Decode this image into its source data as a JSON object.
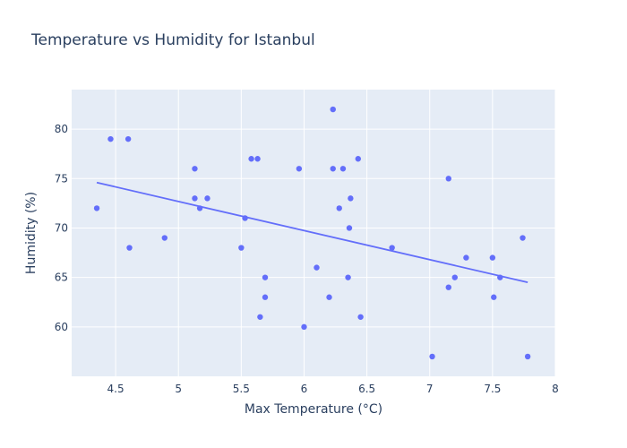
{
  "chart_data": {
    "type": "scatter",
    "title": "Temperature vs Humidity for Istanbul",
    "xlabel": "Max Temperature (°C)",
    "ylabel": "Humidity (%)",
    "xlim": [
      4.15,
      8.0
    ],
    "ylim": [
      55.0,
      84.0
    ],
    "xticks": [
      4.5,
      5,
      5.5,
      6,
      6.5,
      7,
      7.5,
      8
    ],
    "xtick_labels": [
      "4.5",
      "5",
      "5.5",
      "6",
      "6.5",
      "7",
      "7.5",
      "8"
    ],
    "yticks": [
      60,
      65,
      70,
      75,
      80
    ],
    "ytick_labels": [
      "60",
      "65",
      "70",
      "75",
      "80"
    ],
    "grid": true,
    "colors": {
      "plot_bg": "#e5ecf6",
      "grid": "#ffffff",
      "marker": "#636efa",
      "trend": "#636efa"
    },
    "points": [
      {
        "x": 4.35,
        "y": 72
      },
      {
        "x": 4.46,
        "y": 79
      },
      {
        "x": 4.6,
        "y": 79
      },
      {
        "x": 4.61,
        "y": 68
      },
      {
        "x": 4.89,
        "y": 69
      },
      {
        "x": 5.13,
        "y": 76
      },
      {
        "x": 5.13,
        "y": 73
      },
      {
        "x": 5.17,
        "y": 72
      },
      {
        "x": 5.23,
        "y": 73
      },
      {
        "x": 5.5,
        "y": 68
      },
      {
        "x": 5.53,
        "y": 71
      },
      {
        "x": 5.58,
        "y": 77
      },
      {
        "x": 5.63,
        "y": 77
      },
      {
        "x": 5.65,
        "y": 61
      },
      {
        "x": 5.69,
        "y": 65
      },
      {
        "x": 5.69,
        "y": 63
      },
      {
        "x": 5.96,
        "y": 76
      },
      {
        "x": 6.0,
        "y": 60
      },
      {
        "x": 6.1,
        "y": 66
      },
      {
        "x": 6.2,
        "y": 63
      },
      {
        "x": 6.23,
        "y": 82
      },
      {
        "x": 6.23,
        "y": 76
      },
      {
        "x": 6.28,
        "y": 72
      },
      {
        "x": 6.31,
        "y": 76
      },
      {
        "x": 6.35,
        "y": 65
      },
      {
        "x": 6.36,
        "y": 70
      },
      {
        "x": 6.37,
        "y": 73
      },
      {
        "x": 6.43,
        "y": 77
      },
      {
        "x": 6.45,
        "y": 61
      },
      {
        "x": 6.7,
        "y": 68
      },
      {
        "x": 7.02,
        "y": 57
      },
      {
        "x": 7.15,
        "y": 75
      },
      {
        "x": 7.15,
        "y": 64
      },
      {
        "x": 7.2,
        "y": 65
      },
      {
        "x": 7.29,
        "y": 67
      },
      {
        "x": 7.5,
        "y": 67
      },
      {
        "x": 7.51,
        "y": 63
      },
      {
        "x": 7.56,
        "y": 65
      },
      {
        "x": 7.74,
        "y": 69
      },
      {
        "x": 7.78,
        "y": 57
      }
    ],
    "trendline": {
      "x": [
        4.35,
        7.78
      ],
      "y": [
        74.6,
        64.5
      ]
    }
  }
}
